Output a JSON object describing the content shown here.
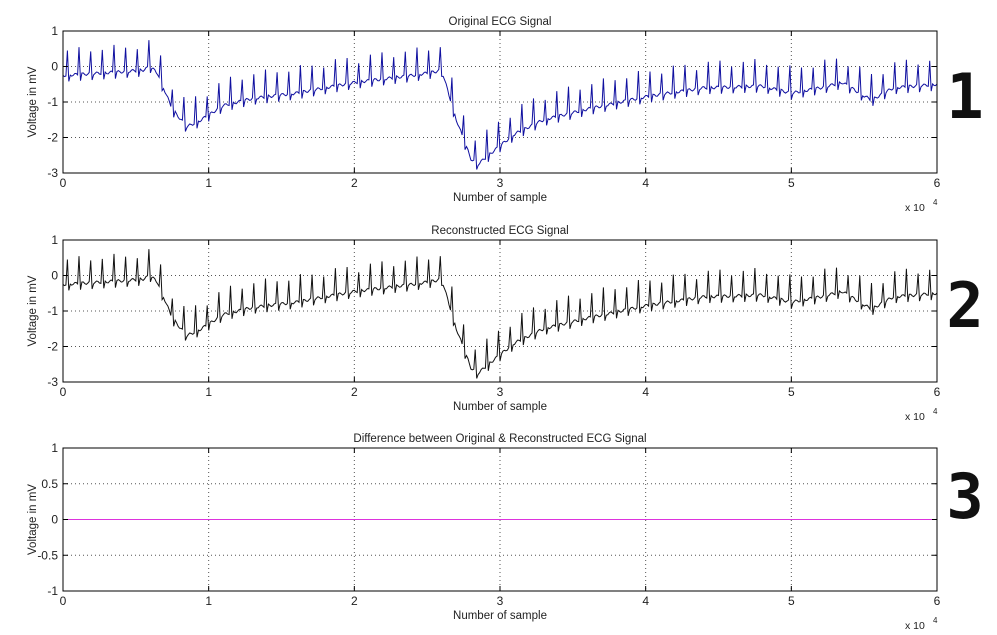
{
  "panel_labels": [
    "1",
    "2",
    "3"
  ],
  "colors": {
    "original": "#1010a0",
    "reconstructed": "#111111",
    "difference": "#dd33dd",
    "axes": "#000000",
    "grid": "#555555"
  },
  "chart_data": [
    {
      "type": "line",
      "title": "Original ECG Signal",
      "xlabel": "Number of sample",
      "ylabel": "Voltage in mV",
      "x_multiplier_text": "x 10",
      "x_multiplier_exp": "4",
      "xlim": [
        0,
        60000
      ],
      "ylim": [
        -3,
        1
      ],
      "grid": true,
      "x_ticks": [
        0,
        1,
        2,
        3,
        4,
        5,
        6
      ],
      "x_tick_labels": [
        "0",
        "1",
        "2",
        "3",
        "4",
        "5",
        "6"
      ],
      "y_ticks": [
        -3,
        -2,
        -1,
        0,
        1
      ],
      "y_tick_labels": [
        "-3",
        "-2",
        "-1",
        "0",
        "1"
      ],
      "series": [
        {
          "color": "#1010a0",
          "baseline": [
            [
              0,
              -0.25
            ],
            [
              2000,
              -0.2
            ],
            [
              4000,
              -0.15
            ],
            [
              5500,
              -0.1
            ],
            [
              6000,
              0.0
            ],
            [
              6500,
              -0.2
            ],
            [
              7500,
              -1.2
            ],
            [
              8500,
              -1.7
            ],
            [
              9500,
              -1.5
            ],
            [
              11000,
              -1.1
            ],
            [
              13000,
              -0.9
            ],
            [
              16000,
              -0.75
            ],
            [
              20000,
              -0.45
            ],
            [
              24000,
              -0.25
            ],
            [
              25500,
              -0.15
            ],
            [
              26000,
              -0.1
            ],
            [
              27000,
              -1.5
            ],
            [
              28000,
              -2.6
            ],
            [
              28500,
              -2.75
            ],
            [
              29500,
              -2.4
            ],
            [
              31000,
              -1.9
            ],
            [
              33000,
              -1.5
            ],
            [
              36000,
              -1.2
            ],
            [
              40000,
              -0.85
            ],
            [
              44000,
              -0.6
            ],
            [
              48000,
              -0.55
            ],
            [
              50000,
              -0.75
            ],
            [
              52000,
              -0.6
            ],
            [
              53500,
              -0.45
            ],
            [
              54500,
              -0.7
            ],
            [
              55500,
              -0.95
            ],
            [
              57000,
              -0.6
            ],
            [
              60000,
              -0.5
            ]
          ],
          "beat_interval": 800,
          "spike_height": 0.7
        }
      ]
    },
    {
      "type": "line",
      "title": "Reconstructed ECG Signal",
      "xlabel": "Number of sample",
      "ylabel": "Voltage in mV",
      "x_multiplier_text": "x 10",
      "x_multiplier_exp": "4",
      "xlim": [
        0,
        60000
      ],
      "ylim": [
        -3,
        1
      ],
      "grid": true,
      "x_ticks": [
        0,
        1,
        2,
        3,
        4,
        5,
        6
      ],
      "x_tick_labels": [
        "0",
        "1",
        "2",
        "3",
        "4",
        "5",
        "6"
      ],
      "y_ticks": [
        -3,
        -2,
        -1,
        0,
        1
      ],
      "y_tick_labels": [
        "-3",
        "-2",
        "-1",
        "0",
        "1"
      ],
      "series": [
        {
          "color": "#111111",
          "baseline": [
            [
              0,
              -0.25
            ],
            [
              2000,
              -0.2
            ],
            [
              4000,
              -0.15
            ],
            [
              5500,
              -0.1
            ],
            [
              6000,
              0.0
            ],
            [
              6500,
              -0.2
            ],
            [
              7500,
              -1.2
            ],
            [
              8500,
              -1.7
            ],
            [
              9500,
              -1.5
            ],
            [
              11000,
              -1.1
            ],
            [
              13000,
              -0.9
            ],
            [
              16000,
              -0.75
            ],
            [
              20000,
              -0.45
            ],
            [
              24000,
              -0.25
            ],
            [
              25500,
              -0.15
            ],
            [
              26000,
              -0.1
            ],
            [
              27000,
              -1.5
            ],
            [
              28000,
              -2.6
            ],
            [
              28500,
              -2.75
            ],
            [
              29500,
              -2.4
            ],
            [
              31000,
              -1.9
            ],
            [
              33000,
              -1.5
            ],
            [
              36000,
              -1.2
            ],
            [
              40000,
              -0.85
            ],
            [
              44000,
              -0.6
            ],
            [
              48000,
              -0.55
            ],
            [
              50000,
              -0.75
            ],
            [
              52000,
              -0.6
            ],
            [
              53500,
              -0.45
            ],
            [
              54500,
              -0.7
            ],
            [
              55500,
              -0.95
            ],
            [
              57000,
              -0.6
            ],
            [
              60000,
              -0.5
            ]
          ],
          "beat_interval": 800,
          "spike_height": 0.7
        }
      ]
    },
    {
      "type": "line",
      "title": "Difference between Original & Reconstructed ECG Signal",
      "xlabel": "Number of sample",
      "ylabel": "Voltage in mV",
      "x_multiplier_text": "x 10",
      "x_multiplier_exp": "4",
      "xlim": [
        0,
        60000
      ],
      "ylim": [
        -1,
        1
      ],
      "grid": true,
      "x_ticks": [
        0,
        1,
        2,
        3,
        4,
        5,
        6
      ],
      "x_tick_labels": [
        "0",
        "1",
        "2",
        "3",
        "4",
        "5",
        "6"
      ],
      "y_ticks": [
        -1,
        -0.5,
        0,
        0.5,
        1
      ],
      "y_tick_labels": [
        "-1",
        "-0.5",
        "0",
        "0.5",
        "1"
      ],
      "series": [
        {
          "color": "#dd33dd",
          "baseline": [
            [
              0,
              0
            ],
            [
              60000,
              0
            ]
          ],
          "beat_interval": 0,
          "spike_height": 0
        }
      ]
    }
  ]
}
